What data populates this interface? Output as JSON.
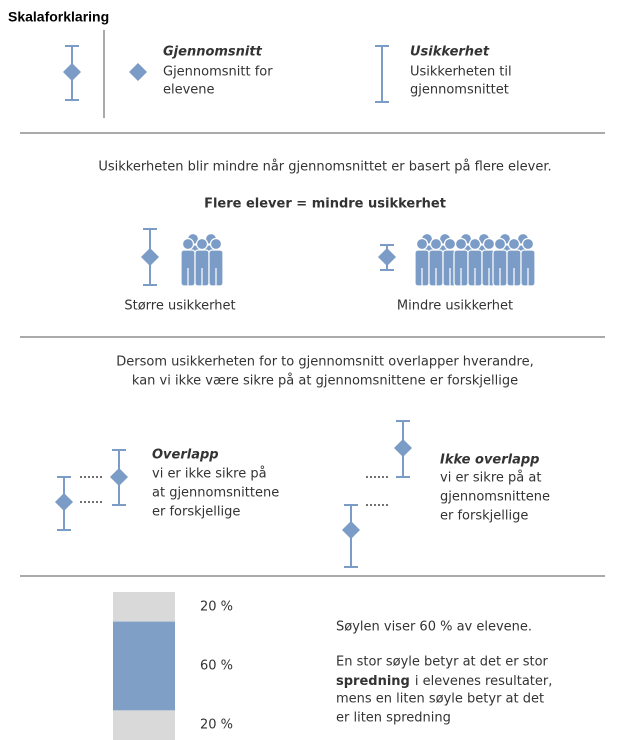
{
  "title": "Skalaforklaring",
  "legend": {
    "mean": {
      "title": "Gjennomsnitt",
      "lines": [
        "Gjennomsnitt for",
        "elevene"
      ]
    },
    "uncertainty": {
      "title": "Usikkerhet",
      "lines": [
        "Usikkerheten til",
        "gjennomsnittet"
      ]
    }
  },
  "section2": {
    "intro": "Usikkerheten blir mindre når gjennomsnittet er basert på flere elever.",
    "heading": "Flere elever = mindre usikkerhet",
    "left_label": "Større usikkerhet",
    "right_label": "Mindre usikkerhet"
  },
  "section3": {
    "intro": [
      "Dersom usikkerheten for to gjennomsnitt overlapper hverandre,",
      "kan vi ikke være sikre på at gjennomsnittene er forskjellige"
    ],
    "overlap": {
      "title": "Overlapp",
      "lines": [
        "vi er ikke sikre på",
        "at gjennomsnittene",
        "er forskjellige"
      ]
    },
    "no_overlap": {
      "title": "Ikke overlapp",
      "lines": [
        "vi er sikre på at",
        "gjennomsnittene",
        "er forskjellige"
      ]
    }
  },
  "section4": {
    "segments": [
      {
        "value": 20,
        "label": "20 %"
      },
      {
        "value": 60,
        "label": "60 %"
      },
      {
        "value": 20,
        "label": "20 %"
      }
    ],
    "caption": "Søylen viser 60 % av elevene.",
    "line1": "En stor søyle betyr at det er stor",
    "line2": {
      "bold": "spredning",
      "rest": "i elevenes resultater,"
    },
    "line3": "mens en liten søyle betyr at det",
    "line4": "er liten spredning"
  }
}
